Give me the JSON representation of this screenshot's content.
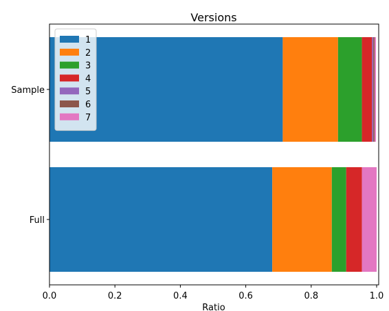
{
  "chart_data": {
    "type": "bar",
    "orientation": "horizontal",
    "stacked": true,
    "title": "Versions",
    "xlabel": "Ratio",
    "ylabel": "",
    "xlim": [
      0.0,
      1.0
    ],
    "xticks": [
      "0.0",
      "0.2",
      "0.4",
      "0.6",
      "0.8",
      "1.0"
    ],
    "categories": [
      "Sample",
      "Full"
    ],
    "legend_position": "top-left",
    "grid": false,
    "series": [
      {
        "name": "1",
        "color": "#1f77b4",
        "values": [
          0.713,
          0.681
        ]
      },
      {
        "name": "2",
        "color": "#ff7f0e",
        "values": [
          0.169,
          0.182
        ]
      },
      {
        "name": "3",
        "color": "#2ca02c",
        "values": [
          0.073,
          0.044
        ]
      },
      {
        "name": "4",
        "color": "#d62728",
        "values": [
          0.031,
          0.048
        ]
      },
      {
        "name": "5",
        "color": "#9467bd",
        "values": [
          0.004,
          0.0
        ]
      },
      {
        "name": "6",
        "color": "#8c564b",
        "values": [
          0.004,
          0.0
        ]
      },
      {
        "name": "7",
        "color": "#e377c2",
        "values": [
          0.004,
          0.045
        ]
      }
    ]
  }
}
